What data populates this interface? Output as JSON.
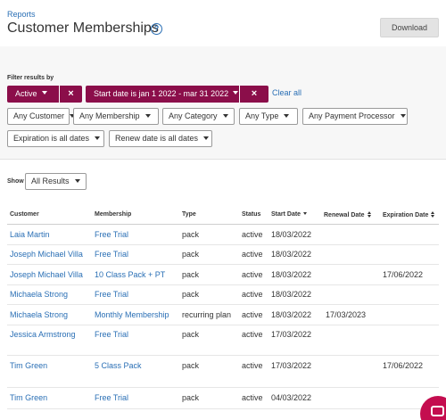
{
  "header": {
    "breadcrumb": "Reports",
    "title": "Customer Memberships",
    "help_icon": "question-circle-icon",
    "download_label": "Download"
  },
  "filters": {
    "label": "Filter results by",
    "active_chips": [
      {
        "label": "Active"
      },
      {
        "label": "Start date is jan 1 2022 - mar 31 2022"
      }
    ],
    "clear_all": "Clear all",
    "dropdowns_row1": [
      "Any Customer",
      "Any Membership",
      "Any Category",
      "Any Type",
      "Any Payment Processor"
    ],
    "dropdowns_row2": [
      "Expiration is all dates",
      "Renew date is all dates"
    ]
  },
  "show": {
    "label": "Show",
    "selected": "All Results"
  },
  "table": {
    "columns": [
      "Customer",
      "Membership",
      "Type",
      "Status",
      "Start Date",
      "Renewal Date",
      "Expiration Date"
    ],
    "rows": [
      {
        "customer": "Laia Martin",
        "membership": "Free Trial",
        "type": "pack",
        "status": "active",
        "start": "18/03/2022",
        "renewal": "",
        "expiration": ""
      },
      {
        "customer": "Joseph Michael Villa",
        "membership": "Free Trial",
        "type": "pack",
        "status": "active",
        "start": "18/03/2022",
        "renewal": "",
        "expiration": ""
      },
      {
        "customer": "Joseph Michael Villa",
        "membership": "10 Class Pack + PT",
        "type": "pack",
        "status": "active",
        "start": "18/03/2022",
        "renewal": "",
        "expiration": "17/06/2022"
      },
      {
        "customer": "Michaela Strong",
        "membership": "Free Trial",
        "type": "pack",
        "status": "active",
        "start": "18/03/2022",
        "renewal": "",
        "expiration": ""
      },
      {
        "customer": "Michaela Strong",
        "membership": "Monthly Membership",
        "type": "recurring plan",
        "status": "active",
        "start": "18/03/2022",
        "renewal": "17/03/2023",
        "expiration": ""
      },
      {
        "customer": "Jessica Armstrong",
        "membership": "Free Trial",
        "type": "pack",
        "status": "active",
        "start": "17/03/2022",
        "renewal": "",
        "expiration": ""
      },
      {
        "customer": "Tim Green",
        "membership": "5 Class Pack",
        "type": "pack",
        "status": "active",
        "start": "17/03/2022",
        "renewal": "",
        "expiration": "17/06/2022"
      },
      {
        "customer": "Tim Green",
        "membership": "Free Trial",
        "type": "pack",
        "status": "active",
        "start": "04/03/2022",
        "renewal": "",
        "expiration": ""
      }
    ]
  },
  "colors": {
    "accent": "#8b0e4a",
    "link": "#2a6fb5",
    "chat": "#c40d4f"
  },
  "chat_icon": "chat-bubble-icon"
}
